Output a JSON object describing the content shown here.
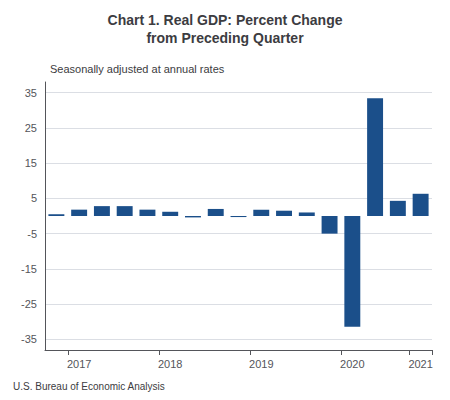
{
  "chart_data": {
    "type": "bar",
    "title": "Chart 1. Real GDP: Percent Change\nfrom Preceding Quarter",
    "subtitle": "Seasonally adjusted at annual rates",
    "annotations": [
      "U.S. Bureau of Economic Analysis"
    ],
    "categories": [
      null,
      "2017",
      null,
      null,
      null,
      "2018",
      null,
      null,
      null,
      "2019",
      null,
      null,
      null,
      "2020",
      null,
      null,
      "2021"
    ],
    "values": [
      0.5,
      1.8,
      2.8,
      2.8,
      1.8,
      1.2,
      -0.4,
      2.0,
      -0.3,
      1.8,
      1.5,
      1.0,
      -5.0,
      -31.4,
      33.4,
      4.3,
      6.3
    ],
    "color": "#1B4F8A",
    "ylim": [
      -38,
      38
    ],
    "yticks": [
      -35,
      -25,
      -15,
      -5,
      5,
      15,
      25,
      35
    ],
    "grid": true
  }
}
